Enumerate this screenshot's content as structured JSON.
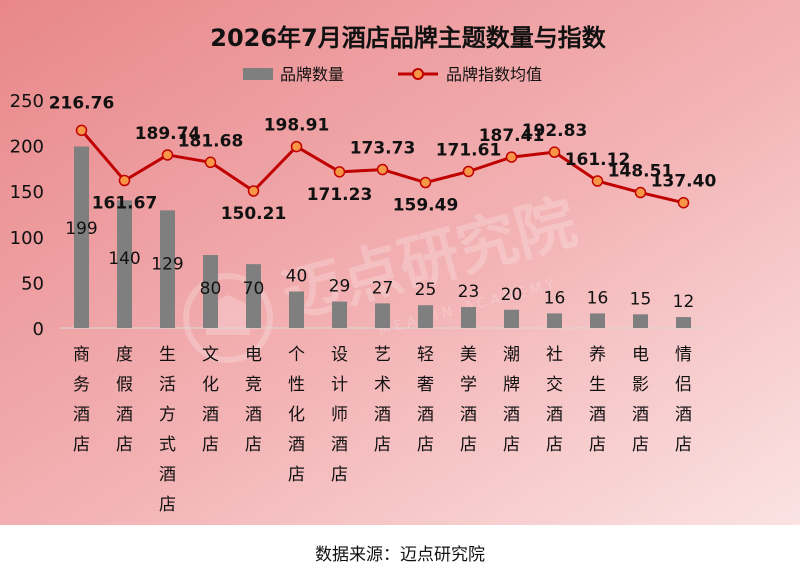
{
  "chart_data": {
    "type": "bar",
    "title": "2026年7月酒店品牌主题数量与指数",
    "categories": [
      "商务酒店",
      "度假酒店",
      "生活方式酒店",
      "文化酒店",
      "电竞酒店",
      "个性化酒店",
      "设计师酒店",
      "艺术酒店",
      "轻奢酒店",
      "美学酒店",
      "潮牌酒店",
      "社交酒店",
      "养生酒店",
      "电影酒店",
      "情侣酒店"
    ],
    "series": [
      {
        "name": "品牌数量",
        "type": "bar",
        "color": "#7f7f7f",
        "values": [
          199,
          140,
          129,
          80,
          70,
          40,
          29,
          27,
          25,
          23,
          20,
          16,
          16,
          15,
          12
        ]
      },
      {
        "name": "品牌指数均值",
        "type": "line",
        "color": "#c00000",
        "values": [
          216.76,
          161.67,
          189.74,
          181.68,
          150.21,
          198.91,
          171.23,
          173.73,
          159.49,
          171.61,
          187.41,
          192.83,
          161.12,
          148.51,
          137.4
        ]
      }
    ],
    "ylim": [
      0,
      250
    ],
    "yticks": [
      "0",
      "50",
      "100",
      "150",
      "200",
      "250"
    ],
    "line_labels": [
      "216.76",
      "161.67",
      "189.74",
      "181.68",
      "150.21",
      "198.91",
      "171.23",
      "173.73",
      "159.49",
      "171.61",
      "187.41",
      "192.83",
      "161.12",
      "148.51",
      "137.40"
    ],
    "legend_position": "top",
    "grid": false
  },
  "watermark": {
    "text": "迈点研究院",
    "subtext": "MEADIN ACADEMY"
  },
  "source": "数据来源：迈点研究院",
  "colors": {
    "bg_start": "#e8878a",
    "bg_end": "#fbe3e3",
    "bar": "#7f7f7f",
    "line": "#c00000",
    "marker_fill": "#f79646"
  }
}
